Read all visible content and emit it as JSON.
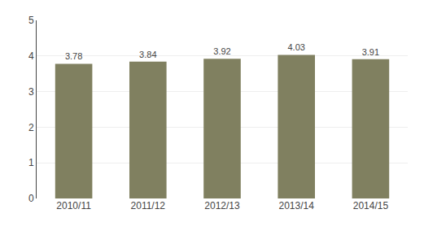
{
  "chart_data": {
    "type": "bar",
    "categories": [
      "2010/11",
      "2011/12",
      "2012/13",
      "2013/14",
      "2014/15"
    ],
    "values": [
      3.78,
      3.84,
      3.92,
      4.03,
      3.91
    ],
    "color": "#808060",
    "ylim": [
      0,
      5
    ],
    "yticks": [
      0,
      1,
      2,
      3,
      4,
      5
    ],
    "grid": true,
    "data_labels": true
  }
}
